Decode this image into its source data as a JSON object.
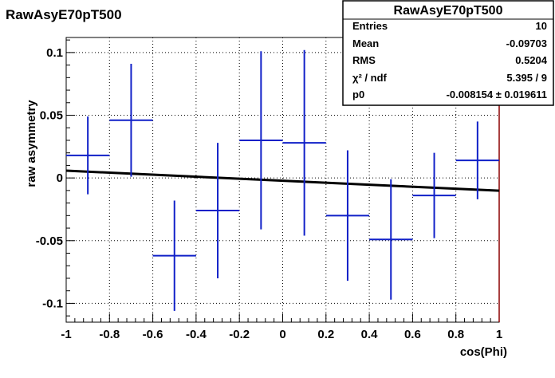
{
  "chart_data": {
    "type": "scatter",
    "title": "RawAsyE70pT500",
    "xlabel": "cos(Phi)",
    "ylabel": "raw asymmetry",
    "xlim": [
      -1,
      1
    ],
    "ylim": [
      -0.115,
      0.112
    ],
    "xticks": [
      -1,
      -0.8,
      -0.6,
      -0.4,
      -0.2,
      0,
      0.2,
      0.4,
      0.6,
      0.8,
      1
    ],
    "xtick_labels": [
      "-1",
      "-0.8",
      "-0.6",
      "-0.4",
      "-0.2",
      "0",
      "0.2",
      "0.4",
      "0.6",
      "0.8",
      "1"
    ],
    "yticks": [
      -0.1,
      -0.05,
      0,
      0.05,
      0.1
    ],
    "ytick_labels": [
      "-0.1",
      "-0.05",
      "0",
      "0.05",
      "0.1"
    ],
    "grid": true,
    "series": [
      {
        "x": [
          -0.9,
          -0.7,
          -0.5,
          -0.3,
          -0.1,
          0.1,
          0.3,
          0.5,
          0.7,
          0.9
        ],
        "x_half_width": 0.1,
        "y": [
          0.018,
          0.046,
          -0.062,
          -0.026,
          0.03,
          0.028,
          -0.03,
          -0.049,
          -0.014,
          0.014
        ],
        "y_err": [
          0.031,
          0.045,
          0.044,
          0.054,
          0.071,
          0.074,
          0.052,
          0.048,
          0.034,
          0.031
        ],
        "color": "#1020c8"
      }
    ],
    "fit": {
      "type": "line",
      "x": [
        -1,
        1
      ],
      "y": [
        0.0058,
        -0.0102
      ],
      "color": "#000000"
    },
    "stats_box": {
      "title": "RawAsyE70pT500",
      "rows": [
        {
          "label": "Entries",
          "value": "10"
        },
        {
          "label": "Mean",
          "value": "-0.09703"
        },
        {
          "label": "RMS",
          "value": "0.5204"
        },
        {
          "label": "χ² / ndf",
          "value": "5.395 / 9"
        },
        {
          "label": "p0",
          "value": "-0.008154 ± 0.019611"
        }
      ]
    }
  }
}
